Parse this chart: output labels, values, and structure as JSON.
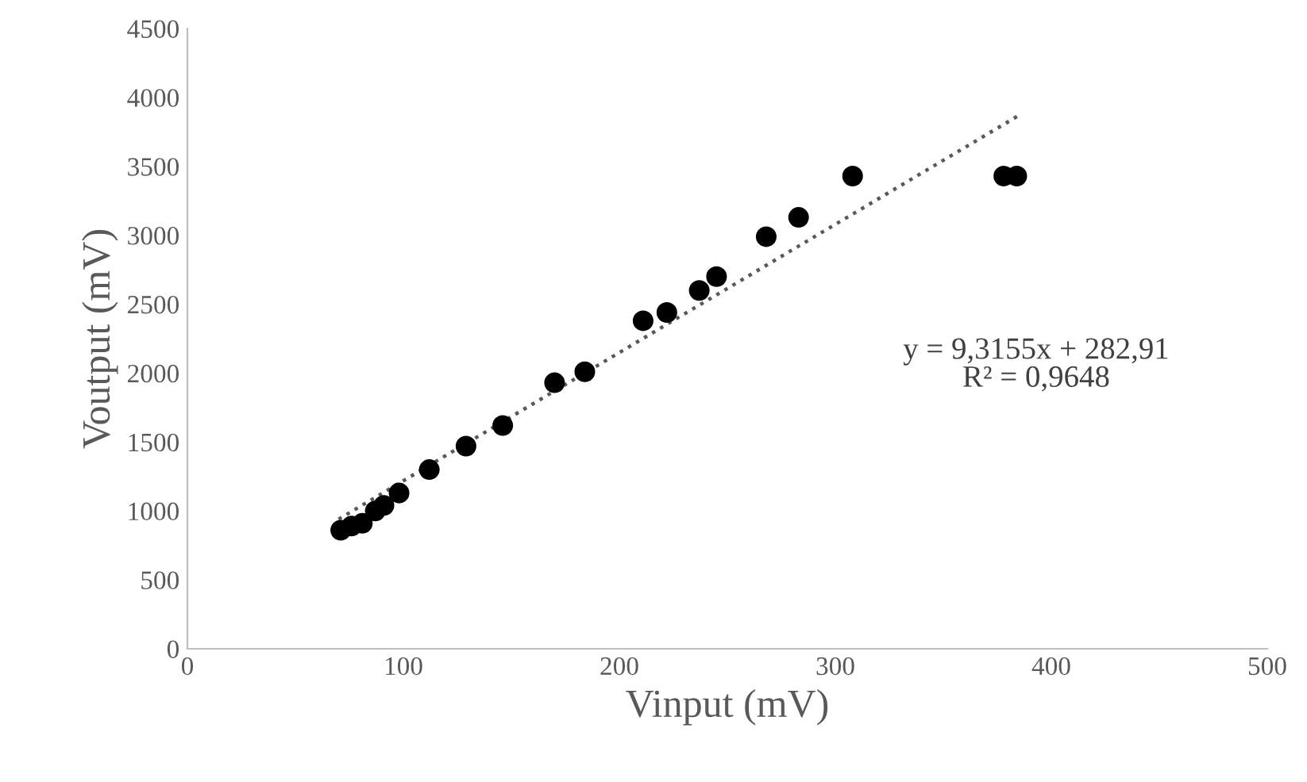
{
  "chart_data": {
    "type": "scatter",
    "xlabel": "Vinput (mV)",
    "ylabel": "Voutput (mV)",
    "xlim": [
      0,
      500
    ],
    "xticks": [
      0,
      100,
      200,
      300,
      400,
      500
    ],
    "ylim": [
      0,
      4500
    ],
    "yticks": [
      0,
      500,
      1000,
      1500,
      2000,
      2500,
      3000,
      3500,
      4000,
      4500
    ],
    "grid": false,
    "legend": false,
    "series": [
      {
        "color": "#000000",
        "marker": "circle",
        "x": [
          71,
          76,
          81,
          87,
          91,
          98,
          112,
          129,
          146,
          170,
          184,
          211,
          222,
          237,
          245,
          268,
          283,
          308,
          378,
          384
        ],
        "values": [
          860,
          890,
          910,
          1000,
          1040,
          1130,
          1300,
          1470,
          1620,
          1930,
          2010,
          2380,
          2440,
          2600,
          2700,
          2990,
          3130,
          3430,
          3430,
          3430
        ]
      },
      {
        "type": "line",
        "color": "#595959",
        "line_style": "dotted",
        "x": [
          70,
          385
        ],
        "values": [
          940,
          3870
        ]
      }
    ],
    "annotations": [
      "y = 9,3155x + 282,91\nR² = 0,9648"
    ]
  }
}
